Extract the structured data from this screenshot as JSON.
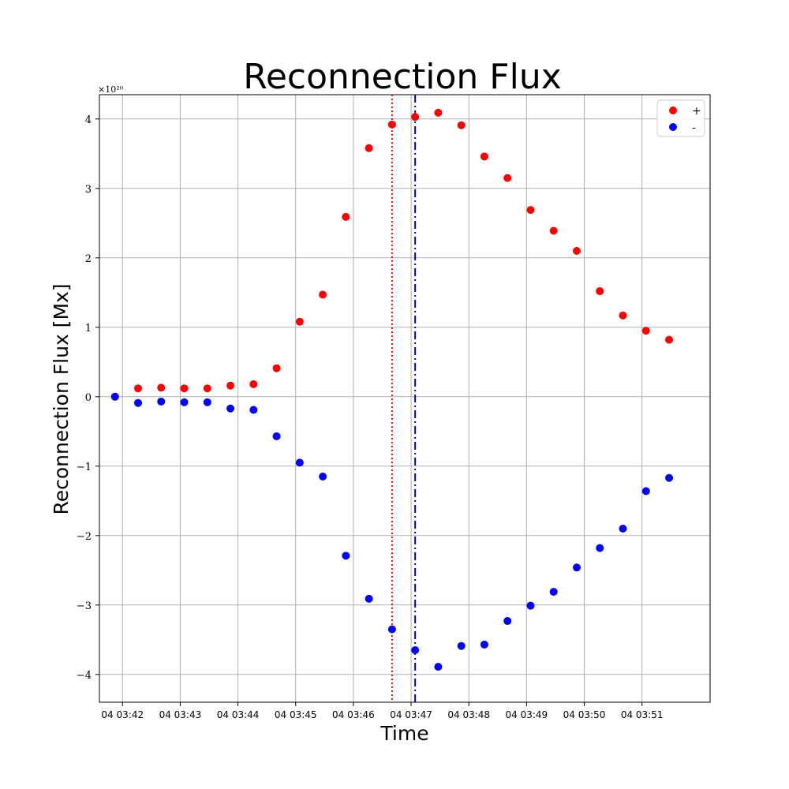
{
  "chart_data": {
    "type": "scatter",
    "title": "Reconnection Flux",
    "xlabel": "Time",
    "ylabel": "Reconnection Flux [Mx]",
    "y_multiplier": "×10²⁰",
    "x_tick_labels": [
      "04 03:42",
      "04 03:43",
      "04 03:44",
      "04 03:45",
      "04 03:46",
      "04 03:47",
      "04 03:48",
      "04 03:49",
      "04 03:50",
      "04 03:51"
    ],
    "x_tick_minutes": [
      42,
      43,
      44,
      45,
      46,
      47,
      48,
      49,
      50,
      51
    ],
    "xlim_minutes": [
      41.6,
      52.18
    ],
    "y_ticks": [
      -4,
      -3,
      -2,
      -1,
      0,
      1,
      2,
      3,
      4
    ],
    "y_tick_labels": [
      "−4",
      "−3",
      "−2",
      "−1",
      "0",
      "1",
      "2",
      "3",
      "4"
    ],
    "ylim": [
      -4.4,
      4.35
    ],
    "grid": true,
    "legend_position": "top-right",
    "x_minutes": [
      41.87,
      42.27,
      42.67,
      43.07,
      43.47,
      43.87,
      44.27,
      44.67,
      45.07,
      45.47,
      45.87,
      46.27,
      46.67,
      47.07,
      47.47,
      47.87,
      48.27,
      48.67,
      49.07,
      49.47,
      49.87,
      50.27,
      50.67,
      51.07,
      51.47
    ],
    "series": [
      {
        "name": "+",
        "color": "#ff0000",
        "values": [
          0.0,
          0.12,
          0.13,
          0.12,
          0.12,
          0.16,
          0.18,
          0.41,
          1.08,
          1.47,
          2.59,
          3.58,
          3.92,
          4.03,
          4.09,
          3.91,
          3.46,
          3.15,
          2.69,
          2.39,
          2.1,
          1.52,
          1.17,
          0.95,
          0.82
        ]
      },
      {
        "name": "-",
        "color": "#0000ff",
        "values": [
          0.0,
          -0.09,
          -0.07,
          -0.08,
          -0.08,
          -0.17,
          -0.19,
          -0.57,
          -0.95,
          -1.15,
          -2.29,
          -2.91,
          -3.35,
          -3.65,
          -3.89,
          -3.59,
          -3.57,
          -3.23,
          -3.01,
          -2.81,
          -2.46,
          -2.18,
          -1.9,
          -1.36,
          -1.17
        ]
      }
    ],
    "vertical_lines": [
      {
        "x_minute": 46.67,
        "color": "#ff0000",
        "style": "dotted"
      },
      {
        "x_minute": 47.07,
        "color": "#0000cc",
        "style": "dashdot"
      }
    ]
  }
}
